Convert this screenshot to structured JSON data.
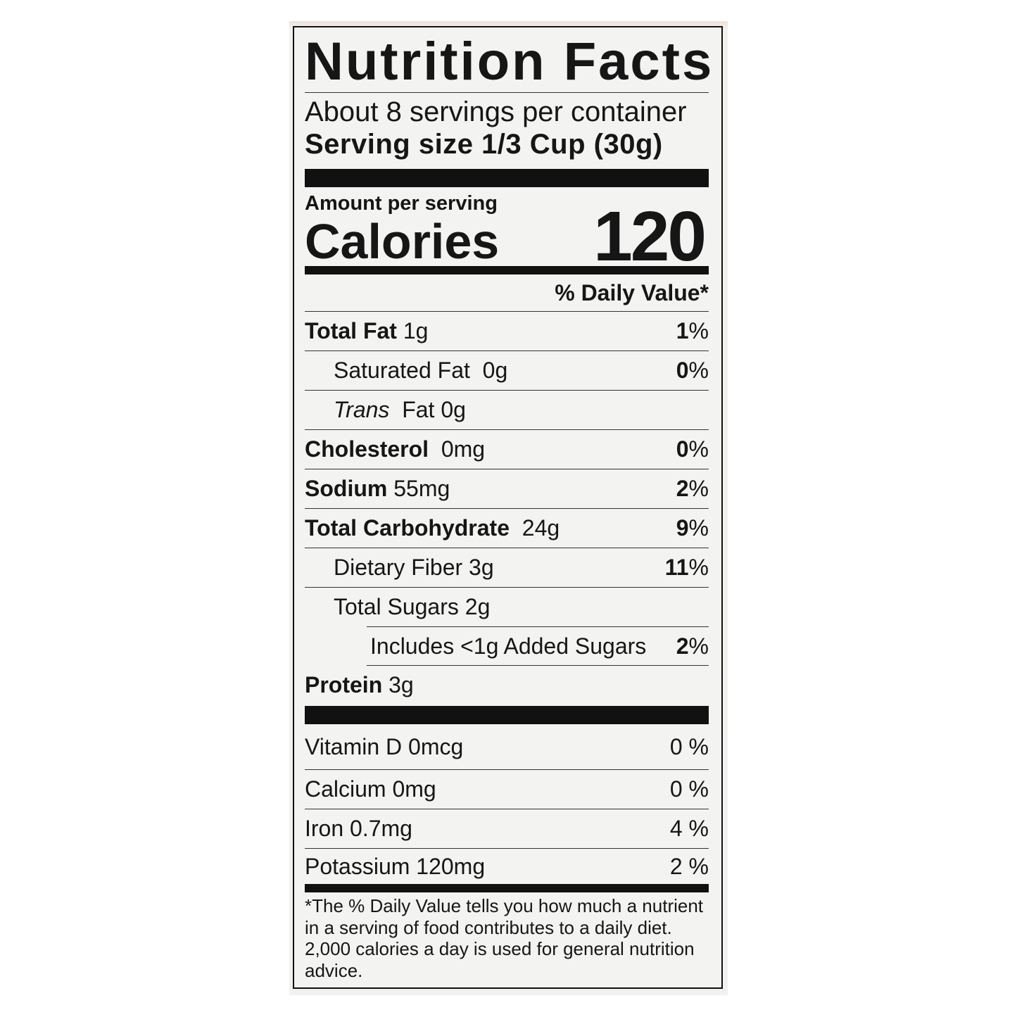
{
  "title": "Nutrition Facts",
  "servings_per_container": "About 8 servings per container",
  "serving_size": "Serving size 1/3 Cup (30g)",
  "amount_per_serving": "Amount per serving",
  "calories_label": "Calories",
  "calories_value": "120",
  "daily_value_header": "% Daily Value*",
  "nutrients": [
    {
      "name": "Total Fat",
      "amount": "1g",
      "dv": "1",
      "pct": "%"
    },
    {
      "name": "Saturated Fat",
      "amount": "0g",
      "dv": "0",
      "pct": "%"
    },
    {
      "name": "Trans",
      "amount": "Fat 0g"
    },
    {
      "name": "Cholesterol",
      "amount": "0mg",
      "dv": "0",
      "pct": "%"
    },
    {
      "name": "Sodium",
      "amount": "55mg",
      "dv": "2",
      "pct": "%"
    },
    {
      "name": "Total Carbohydrate",
      "amount": "24g",
      "dv": "9",
      "pct": "%"
    },
    {
      "name": "Dietary Fiber",
      "amount": "3g",
      "dv": "11",
      "pct": "%"
    },
    {
      "name": "Total Sugars",
      "amount": "2g"
    },
    {
      "name": "Includes <1g Added Sugars",
      "dv": "2",
      "pct": "%"
    },
    {
      "name": "Protein",
      "amount": "3g"
    }
  ],
  "vitamins": [
    {
      "name": "Vitamin D 0mcg",
      "dv": "0 %"
    },
    {
      "name": "Calcium 0mg",
      "dv": "0 %"
    },
    {
      "name": "Iron 0.7mg",
      "dv": "4 %"
    },
    {
      "name": "Potassium 120mg",
      "dv": "2 %"
    }
  ],
  "footnote": "*The % Daily Value tells you how much a nutrient in a serving of food contributes to a daily diet. 2,000 calories a day is used for general nutrition advice."
}
